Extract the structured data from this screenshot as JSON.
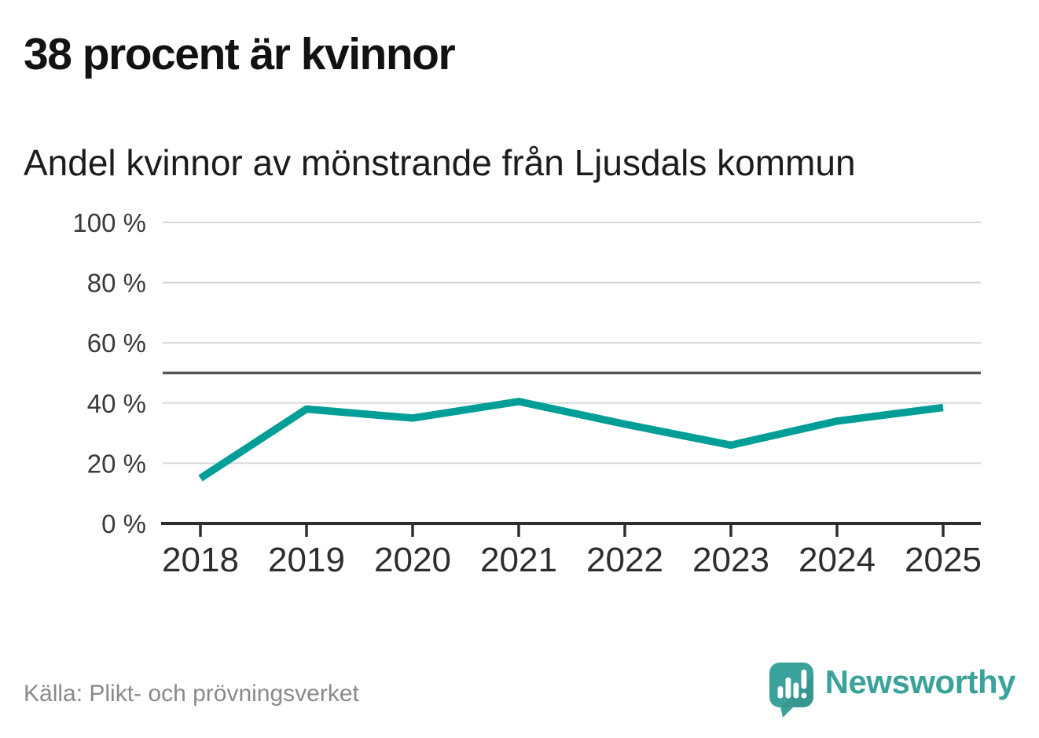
{
  "page": {
    "title": "38 procent är kvinnor",
    "subtitle": "Andel kvinnor av mönstrande från Ljusdals kommun",
    "source": "Källa: Plikt- och prövningsverket"
  },
  "branding": {
    "wordmark": "Newsworthy",
    "logo_icon": "speech-bubble-bar-chart-icon",
    "color": "#3ba29b"
  },
  "chart_data": {
    "type": "line",
    "title": "38 procent är kvinnor",
    "subtitle": "Andel kvinnor av mönstrande från Ljusdals kommun",
    "x": [
      "2018",
      "2019",
      "2020",
      "2021",
      "2022",
      "2023",
      "2024",
      "2025"
    ],
    "series": [
      {
        "name": "Andel kvinnor av mönstrande",
        "color": "#009e96",
        "values": [
          15,
          38,
          35,
          40.5,
          33,
          26,
          34,
          38.5
        ]
      }
    ],
    "unit": "%",
    "ylim": [
      0,
      100
    ],
    "y_ticks": [
      0,
      20,
      40,
      60,
      80,
      100
    ],
    "y_tick_labels": [
      "0 %",
      "20 %",
      "40 %",
      "60 %",
      "80 %",
      "100 %"
    ],
    "reference_line": {
      "value": 50,
      "color": "#55565c"
    },
    "grid": true,
    "legend": "none",
    "gridline_color": "#d8d8d8",
    "axis_color": "#2e2e2e",
    "label_color": "#3a3a3a"
  }
}
